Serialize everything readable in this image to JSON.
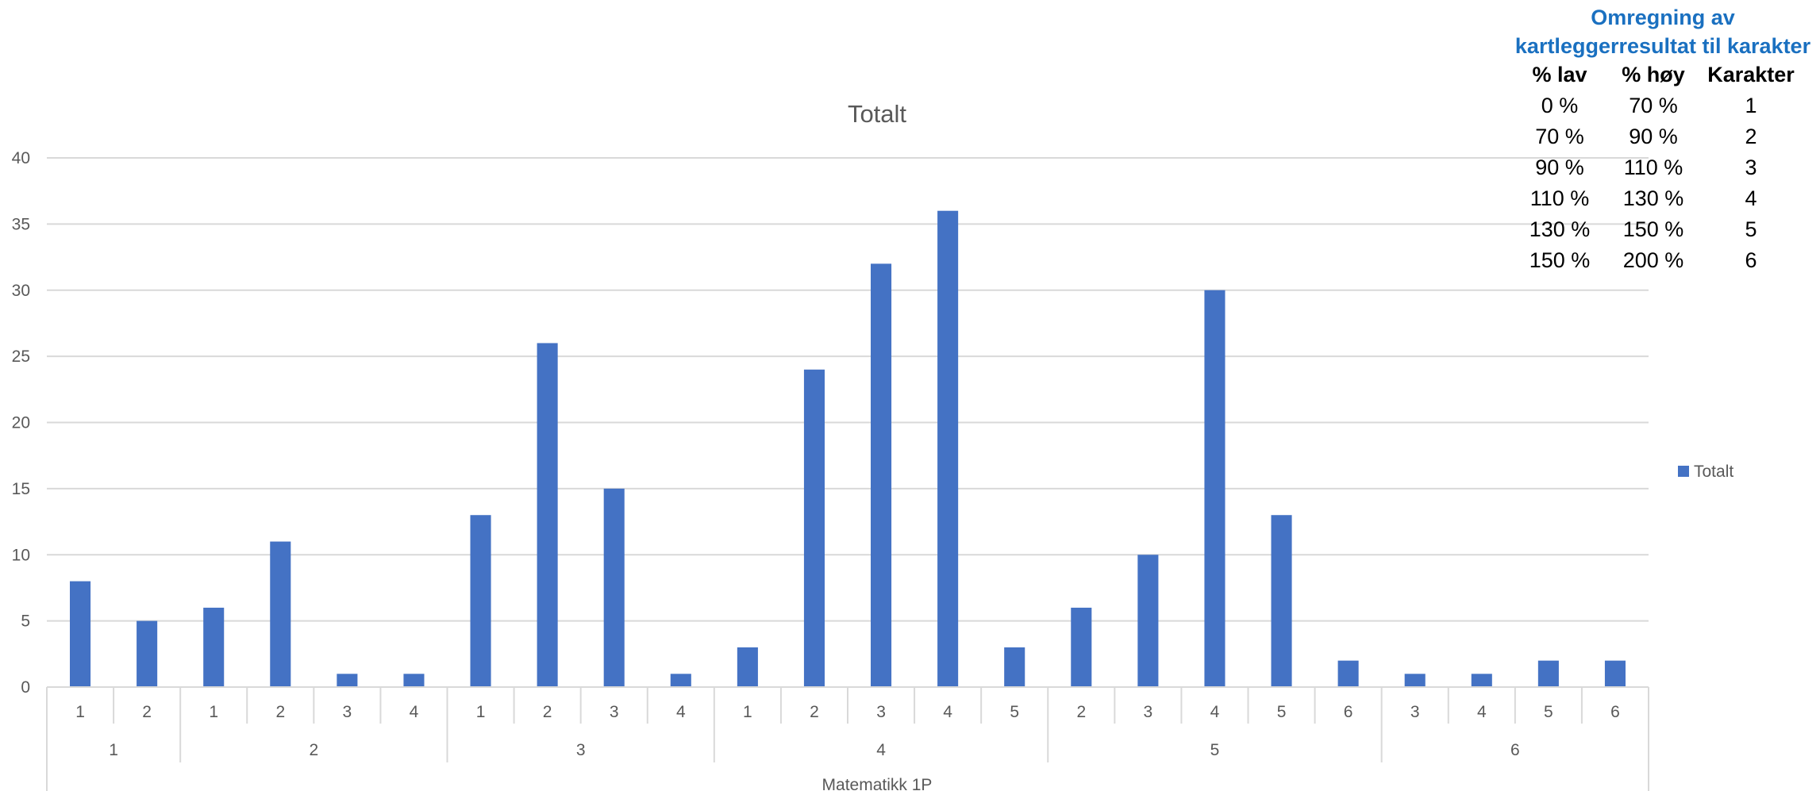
{
  "chart_data": {
    "type": "bar",
    "title": "Totalt",
    "xlabel": "Matematikk 1P",
    "ylabel": "",
    "ylim": [
      0,
      40
    ],
    "yticks": [
      0,
      5,
      10,
      15,
      20,
      25,
      30,
      35,
      40
    ],
    "grid": true,
    "legend_position": "right",
    "bar_color": "#4472c4",
    "groups": [
      {
        "label": "1",
        "categories": [
          "1",
          "2"
        ]
      },
      {
        "label": "2",
        "categories": [
          "1",
          "2",
          "3",
          "4"
        ]
      },
      {
        "label": "3",
        "categories": [
          "1",
          "2",
          "3",
          "4"
        ]
      },
      {
        "label": "4",
        "categories": [
          "1",
          "2",
          "3",
          "4",
          "5"
        ]
      },
      {
        "label": "5",
        "categories": [
          "2",
          "3",
          "4",
          "5",
          "6"
        ]
      },
      {
        "label": "6",
        "categories": [
          "3",
          "4",
          "5",
          "6"
        ]
      }
    ],
    "series": [
      {
        "name": "Totalt",
        "values": [
          8,
          5,
          6,
          11,
          1,
          1,
          13,
          26,
          15,
          1,
          3,
          24,
          32,
          36,
          3,
          6,
          10,
          30,
          13,
          2,
          1,
          1,
          2,
          2
        ]
      }
    ]
  },
  "conversion": {
    "title_line1": "Omregning av",
    "title_line2": "kartleggerresultat til karakter",
    "headers": [
      "% lav",
      "% høy",
      "Karakter"
    ],
    "rows": [
      [
        "0 %",
        "70 %",
        "1"
      ],
      [
        "70 %",
        "90 %",
        "2"
      ],
      [
        "90 %",
        "110 %",
        "3"
      ],
      [
        "110 %",
        "130 %",
        "4"
      ],
      [
        "130 %",
        "150 %",
        "5"
      ],
      [
        "150 %",
        "200 %",
        "6"
      ]
    ]
  }
}
